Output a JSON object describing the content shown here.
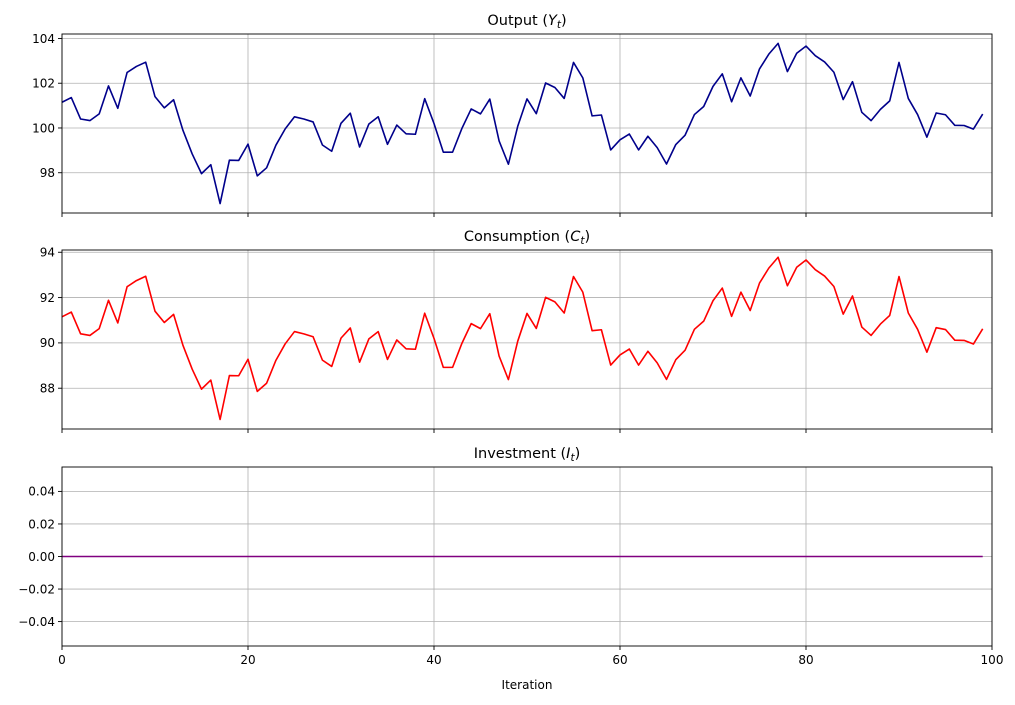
{
  "chart_data": [
    {
      "type": "line",
      "title_prefix": "Output (",
      "title_var": "Y",
      "title_sub": "t",
      "title_suffix": ")",
      "xlim": [
        0,
        100
      ],
      "ylim": [
        96.2,
        104.2
      ],
      "yticks": [
        98,
        100,
        102,
        104
      ],
      "xticks": [
        0,
        20,
        40,
        60,
        80,
        100
      ],
      "show_xtick_labels": false,
      "grid": true,
      "color": "#00008b",
      "series": [
        {
          "name": "Output",
          "x_start": 0,
          "values": [
            101.15,
            101.36,
            100.4,
            100.33,
            100.63,
            101.88,
            100.88,
            102.48,
            102.75,
            102.94,
            101.4,
            100.9,
            101.26,
            99.9,
            98.84,
            97.96,
            98.36,
            96.62,
            98.56,
            98.55,
            99.28,
            97.86,
            98.22,
            99.23,
            99.96,
            100.5,
            100.4,
            100.27,
            99.24,
            98.96,
            100.21,
            100.66,
            99.15,
            100.18,
            100.5,
            99.27,
            100.13,
            99.74,
            99.72,
            101.31,
            100.2,
            98.92,
            98.92,
            99.98,
            100.85,
            100.63,
            101.29,
            99.42,
            98.38,
            100.07,
            101.3,
            100.64,
            102.01,
            101.81,
            101.32,
            102.93,
            102.24,
            100.54,
            100.58,
            99.02,
            99.47,
            99.73,
            99.02,
            99.63,
            99.12,
            98.39,
            99.26,
            99.68,
            100.6,
            100.96,
            101.86,
            102.42,
            101.17,
            102.24,
            101.43,
            102.64,
            103.3,
            103.78,
            102.52,
            103.34,
            103.66,
            103.23,
            102.95,
            102.49,
            101.27,
            102.07,
            100.7,
            100.33,
            100.83,
            101.21,
            102.93,
            101.32,
            100.6,
            99.59,
            100.67,
            100.59,
            100.12,
            100.11,
            99.95,
            100.62
          ]
        }
      ]
    },
    {
      "type": "line",
      "title_prefix": "Consumption (",
      "title_var": "C",
      "title_sub": "t",
      "title_suffix": ")",
      "xlim": [
        0,
        100
      ],
      "ylim": [
        86.2,
        94.1
      ],
      "yticks": [
        88,
        90,
        92,
        94
      ],
      "xticks": [
        0,
        20,
        40,
        60,
        80,
        100
      ],
      "show_xtick_labels": false,
      "grid": true,
      "color": "#ff0000",
      "series": [
        {
          "name": "Consumption",
          "x_start": 0,
          "values": [
            91.15,
            91.36,
            90.4,
            90.33,
            90.63,
            91.88,
            90.88,
            92.48,
            92.75,
            92.94,
            91.4,
            90.9,
            91.26,
            89.9,
            88.84,
            87.96,
            88.36,
            86.62,
            88.56,
            88.55,
            89.28,
            87.86,
            88.22,
            89.23,
            89.96,
            90.5,
            90.4,
            90.27,
            89.24,
            88.96,
            90.21,
            90.66,
            89.15,
            90.18,
            90.5,
            89.27,
            90.13,
            89.74,
            89.72,
            91.31,
            90.2,
            88.92,
            88.92,
            89.98,
            90.85,
            90.63,
            91.29,
            89.42,
            88.38,
            90.07,
            91.3,
            90.64,
            92.01,
            91.81,
            91.32,
            92.93,
            92.24,
            90.54,
            90.58,
            89.02,
            89.47,
            89.73,
            89.02,
            89.63,
            89.12,
            88.39,
            89.26,
            89.68,
            90.6,
            90.96,
            91.86,
            92.42,
            91.17,
            92.24,
            91.43,
            92.64,
            93.3,
            93.78,
            92.52,
            93.34,
            93.66,
            93.23,
            92.95,
            92.49,
            91.27,
            92.07,
            90.7,
            90.33,
            90.83,
            91.21,
            92.93,
            91.32,
            90.6,
            89.59,
            90.67,
            90.59,
            90.12,
            90.11,
            89.95,
            90.62
          ]
        }
      ]
    },
    {
      "type": "line",
      "title_prefix": "Investment (",
      "title_var": "I",
      "title_sub": "t",
      "title_suffix": ")",
      "xlim": [
        0,
        100
      ],
      "ylim": [
        -0.055,
        0.055
      ],
      "yticks": [
        -0.04,
        -0.02,
        0.0,
        0.02,
        0.04
      ],
      "ytick_labels": [
        "−0.04",
        "−0.02",
        "0.00",
        "0.02",
        "0.04"
      ],
      "xticks": [
        0,
        20,
        40,
        60,
        80,
        100
      ],
      "show_xtick_labels": true,
      "xlabel": "Iteration",
      "grid": true,
      "color": "#800080",
      "series": [
        {
          "name": "Investment",
          "x_start": 0,
          "x_end": 99,
          "constant": 0.0
        }
      ]
    }
  ]
}
